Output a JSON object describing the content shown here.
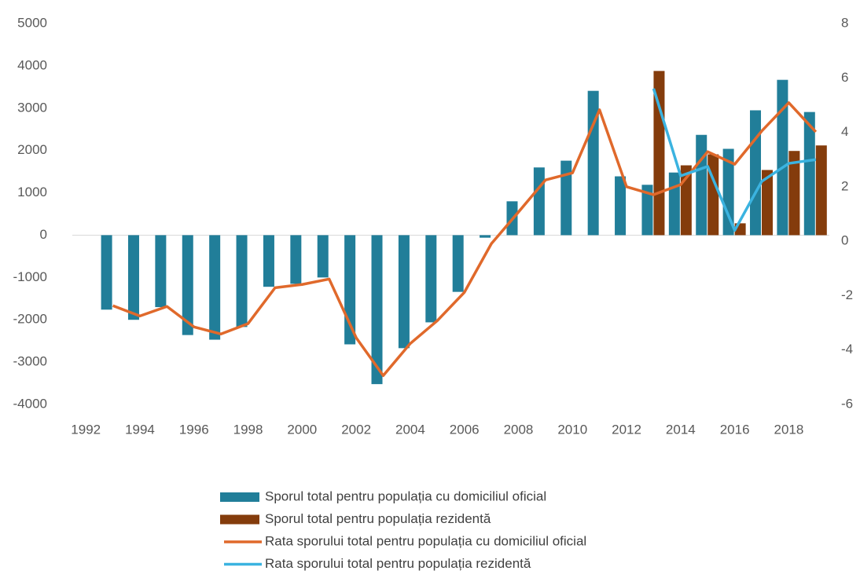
{
  "chart_data": {
    "type": "bar",
    "categories": [
      "1992",
      null,
      "1994",
      null,
      "1996",
      null,
      "1998",
      null,
      "2000",
      null,
      "2002",
      null,
      "2004",
      null,
      "2006",
      null,
      "2008",
      null,
      "2010",
      null,
      "2012",
      null,
      "2014",
      null,
      "2016",
      null,
      "2018",
      null
    ],
    "series": [
      {
        "name": "Sporul total pentru populația cu domiciliul oficial",
        "type": "bar",
        "color": "#217e99",
        "values": [
          null,
          -1760,
          -2000,
          -1700,
          -2360,
          -2470,
          -2170,
          -1220,
          -1150,
          -1000,
          -2580,
          -3520,
          -2670,
          -2060,
          -1340,
          -60,
          800,
          1600,
          1760,
          3410,
          1390,
          1190,
          1480,
          2370,
          2040,
          2950,
          3670,
          2910
        ]
      },
      {
        "name": "Sporul total pentru populația rezidentă",
        "type": "bar",
        "color": "#843c0c",
        "values": [
          null,
          null,
          null,
          null,
          null,
          null,
          null,
          null,
          null,
          null,
          null,
          null,
          null,
          null,
          null,
          null,
          null,
          null,
          null,
          null,
          null,
          3880,
          1650,
          1910,
          280,
          1540,
          1990,
          2120
        ]
      },
      {
        "name": "Rata sporului total pentru populația cu domiciliul oficial",
        "type": "line",
        "axis": "y2",
        "color": "#e0692b",
        "values": [
          null,
          -2.37,
          -2.75,
          -2.4,
          -3.15,
          -3.41,
          -3.03,
          -1.71,
          -1.59,
          -1.39,
          -3.55,
          -4.94,
          -3.76,
          -2.92,
          -1.88,
          -0.09,
          1.07,
          2.25,
          2.51,
          4.83,
          2.0,
          1.71,
          2.08,
          3.29,
          2.83,
          4.05,
          5.09,
          4.02
        ]
      },
      {
        "name": "Rata sporului total pentru populația rezidentă",
        "type": "line",
        "axis": "y2",
        "color": "#3bb3e0",
        "values": [
          null,
          null,
          null,
          null,
          null,
          null,
          null,
          null,
          null,
          null,
          null,
          null,
          null,
          null,
          null,
          null,
          null,
          null,
          null,
          null,
          null,
          5.61,
          2.4,
          2.75,
          0.4,
          2.2,
          2.86,
          3.0
        ]
      }
    ],
    "ylim": [
      -4000,
      5000
    ],
    "yticks": [
      -4000,
      -3000,
      -2000,
      -1000,
      0,
      1000,
      2000,
      3000,
      4000,
      5000
    ],
    "y2lim": [
      -6,
      8
    ],
    "y2ticks": [
      -6,
      -4,
      -2,
      0,
      2,
      4,
      6,
      8
    ],
    "legend": "bottom"
  }
}
